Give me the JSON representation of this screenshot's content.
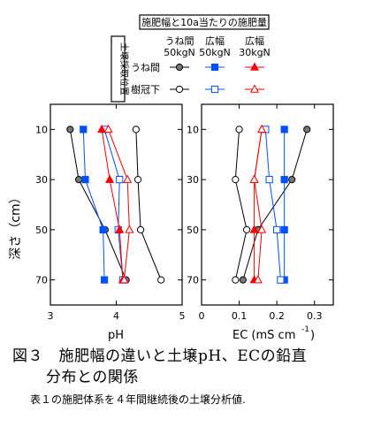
{
  "legend": {
    "title": "施肥幅と10a当たりの施肥量",
    "side_label": "土壌採取位置",
    "col_headers": [
      {
        "line1": "うね間",
        "line2": "50kgN"
      },
      {
        "line1": "広幅",
        "line2": "50kgN"
      },
      {
        "line1": "広幅",
        "line2": "30kgN"
      }
    ],
    "row_labels": [
      "うね間",
      "樹冠下"
    ]
  },
  "y_axis_label": "深さ（cm）",
  "caption": {
    "figure_line1": "図３　施肥幅の違いと土壌pH、ECの鉛直",
    "figure_line2": "分布との関係",
    "note": "表１の施肥体系を４年間継続後の土壌分析値."
  },
  "colors": {
    "black": "#000000",
    "blue": "#0050ff",
    "red": "#ff0000",
    "gray": "#777777"
  },
  "chart_data": [
    {
      "type": "line",
      "xlabel": "pH",
      "ylabel": "深さ（cm）",
      "xlim": [
        3,
        5
      ],
      "xticks": [
        "3",
        "4",
        "5"
      ],
      "ylim": [
        80,
        0
      ],
      "yticks": [
        "10",
        "30",
        "50",
        "70"
      ],
      "depths": [
        10,
        30,
        50,
        70
      ],
      "series": [
        {
          "name": "うね間 50kgN うね間",
          "color": "#000000",
          "marker": "circle",
          "filled": true,
          "values": [
            3.3,
            3.43,
            3.83,
            4.15
          ]
        },
        {
          "name": "うね間 50kgN 樹冠下",
          "color": "#000000",
          "marker": "circle",
          "filled": false,
          "values": [
            4.3,
            4.33,
            4.37,
            4.68
          ]
        },
        {
          "name": "広幅 50kgN うね間",
          "color": "#0050ff",
          "marker": "square",
          "filled": true,
          "values": [
            3.5,
            3.53,
            3.8,
            3.82
          ]
        },
        {
          "name": "広幅 50kgN 樹冠下",
          "color": "#0050ff",
          "marker": "square",
          "filled": false,
          "values": [
            3.82,
            4.05,
            4.03,
            4.1
          ]
        },
        {
          "name": "広幅 30kgN うね間",
          "color": "#ff0000",
          "marker": "triangle",
          "filled": true,
          "values": [
            3.78,
            3.9,
            4.05,
            4.1
          ]
        },
        {
          "name": "広幅 30kgN 樹冠下",
          "color": "#ff0000",
          "marker": "triangle",
          "filled": false,
          "values": [
            3.88,
            4.17,
            4.2,
            4.12
          ]
        }
      ]
    },
    {
      "type": "line",
      "xlabel": "EC (mS cm-1)",
      "ylabel": "",
      "xlim": [
        0,
        0.35
      ],
      "xticks": [
        "0",
        "0.1",
        "0.2",
        "0.3"
      ],
      "ylim": [
        80,
        0
      ],
      "yticks": [
        "10",
        "30",
        "50",
        "70"
      ],
      "depths": [
        10,
        30,
        50,
        70
      ],
      "series": [
        {
          "name": "うね間 50kgN うね間",
          "color": "#000000",
          "marker": "circle",
          "filled": true,
          "values": [
            0.28,
            0.24,
            0.15,
            0.11
          ]
        },
        {
          "name": "うね間 50kgN 樹冠下",
          "color": "#000000",
          "marker": "circle",
          "filled": false,
          "values": [
            0.1,
            0.09,
            0.12,
            0.09
          ]
        },
        {
          "name": "広幅 50kgN うね間",
          "color": "#0050ff",
          "marker": "square",
          "filled": true,
          "values": [
            0.22,
            0.22,
            0.22,
            0.22
          ]
        },
        {
          "name": "広幅 50kgN 樹冠下",
          "color": "#0050ff",
          "marker": "square",
          "filled": false,
          "values": [
            0.17,
            0.18,
            0.2,
            0.21
          ]
        },
        {
          "name": "広幅 30kgN うね間",
          "color": "#ff0000",
          "marker": "triangle",
          "filled": true,
          "values": [
            0.16,
            0.14,
            0.14,
            0.14
          ]
        },
        {
          "name": "広幅 30kgN 樹冠下",
          "color": "#ff0000",
          "marker": "triangle",
          "filled": false,
          "values": [
            0.16,
            0.14,
            0.16,
            0.15
          ]
        }
      ]
    }
  ]
}
